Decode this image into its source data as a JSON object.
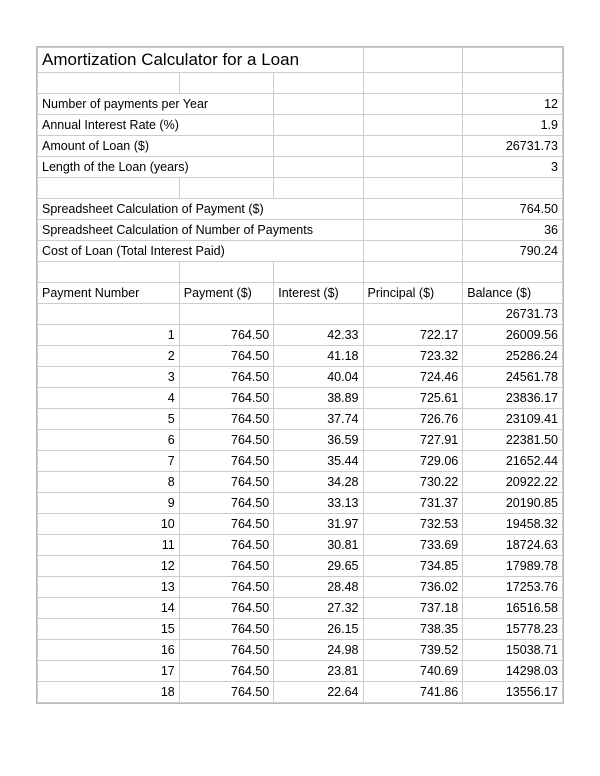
{
  "title": "Amortization Calculator for a Loan",
  "inputs": [
    {
      "label": "Number of payments per Year",
      "value": "12"
    },
    {
      "label": "Annual Interest Rate (%)",
      "value": "1.9"
    },
    {
      "label": "Amount of Loan ($)",
      "value": "26731.73"
    },
    {
      "label": "Length of the Loan (years)",
      "value": "3"
    }
  ],
  "calculated": [
    {
      "label": "Spreadsheet Calculation of Payment ($)",
      "value": "764.50"
    },
    {
      "label": "Spreadsheet Calculation of Number of Payments",
      "value": "36"
    },
    {
      "label": "Cost of Loan (Total Interest Paid)",
      "value": "790.24"
    }
  ],
  "schedule": {
    "headers": [
      "Payment Number",
      "Payment ($)",
      "Interest ($)",
      "Principal ($)",
      "Balance ($)"
    ],
    "initial_balance": "26731.73",
    "rows": [
      {
        "n": "1",
        "payment": "764.50",
        "interest": "42.33",
        "principal": "722.17",
        "balance": "26009.56"
      },
      {
        "n": "2",
        "payment": "764.50",
        "interest": "41.18",
        "principal": "723.32",
        "balance": "25286.24"
      },
      {
        "n": "3",
        "payment": "764.50",
        "interest": "40.04",
        "principal": "724.46",
        "balance": "24561.78"
      },
      {
        "n": "4",
        "payment": "764.50",
        "interest": "38.89",
        "principal": "725.61",
        "balance": "23836.17"
      },
      {
        "n": "5",
        "payment": "764.50",
        "interest": "37.74",
        "principal": "726.76",
        "balance": "23109.41"
      },
      {
        "n": "6",
        "payment": "764.50",
        "interest": "36.59",
        "principal": "727.91",
        "balance": "22381.50"
      },
      {
        "n": "7",
        "payment": "764.50",
        "interest": "35.44",
        "principal": "729.06",
        "balance": "21652.44"
      },
      {
        "n": "8",
        "payment": "764.50",
        "interest": "34.28",
        "principal": "730.22",
        "balance": "20922.22"
      },
      {
        "n": "9",
        "payment": "764.50",
        "interest": "33.13",
        "principal": "731.37",
        "balance": "20190.85"
      },
      {
        "n": "10",
        "payment": "764.50",
        "interest": "31.97",
        "principal": "732.53",
        "balance": "19458.32"
      },
      {
        "n": "11",
        "payment": "764.50",
        "interest": "30.81",
        "principal": "733.69",
        "balance": "18724.63"
      },
      {
        "n": "12",
        "payment": "764.50",
        "interest": "29.65",
        "principal": "734.85",
        "balance": "17989.78"
      },
      {
        "n": "13",
        "payment": "764.50",
        "interest": "28.48",
        "principal": "736.02",
        "balance": "17253.76"
      },
      {
        "n": "14",
        "payment": "764.50",
        "interest": "27.32",
        "principal": "737.18",
        "balance": "16516.58"
      },
      {
        "n": "15",
        "payment": "764.50",
        "interest": "26.15",
        "principal": "738.35",
        "balance": "15778.23"
      },
      {
        "n": "16",
        "payment": "764.50",
        "interest": "24.98",
        "principal": "739.52",
        "balance": "15038.71"
      },
      {
        "n": "17",
        "payment": "764.50",
        "interest": "23.81",
        "principal": "740.69",
        "balance": "14298.03"
      },
      {
        "n": "18",
        "payment": "764.50",
        "interest": "22.64",
        "principal": "741.86",
        "balance": "13556.17"
      }
    ]
  }
}
